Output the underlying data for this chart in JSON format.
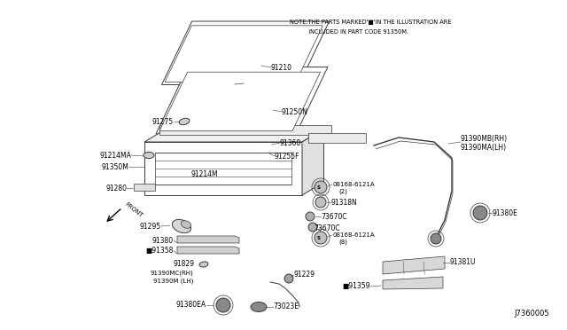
{
  "background_color": "#ffffff",
  "line_color": "#3a3a3a",
  "text_color": "#000000",
  "note_text1": "NOTE:THE PARTS MARKED'■'IN THE ILLUSTRATION ARE",
  "note_text2": "          INCLUDED IN PART CODE 91350M.",
  "diagram_id": "J7360005",
  "figsize": [
    6.4,
    3.72
  ],
  "dpi": 100
}
